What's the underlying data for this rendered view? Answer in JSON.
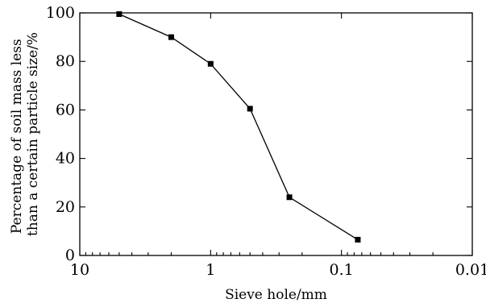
{
  "chart_data": {
    "type": "line",
    "title": "",
    "xlabel": "Sieve hole/mm",
    "ylabel": "Percentage of soil mass less than a certain particle size/%",
    "ylabel_lines": [
      "Percentage of soil mass less",
      "than a certain particle size/%"
    ],
    "x_scale": "log",
    "x_reversed": true,
    "xlim": [
      10,
      0.01
    ],
    "ylim": [
      0,
      100
    ],
    "x_ticks": [
      10,
      1,
      0.1,
      0.01
    ],
    "x_tick_labels": [
      "10",
      "1",
      "0.1",
      "0.01"
    ],
    "y_ticks": [
      0,
      20,
      40,
      60,
      80,
      100
    ],
    "y_tick_labels": [
      "0",
      "20",
      "40",
      "60",
      "80",
      "100"
    ],
    "grid": false,
    "series": [
      {
        "x": [
          5,
          2,
          1,
          0.5,
          0.25,
          0.075
        ],
        "y": [
          99.5,
          90,
          79,
          60.5,
          24,
          6.5
        ],
        "marker": "square",
        "color": "#000000"
      }
    ]
  }
}
